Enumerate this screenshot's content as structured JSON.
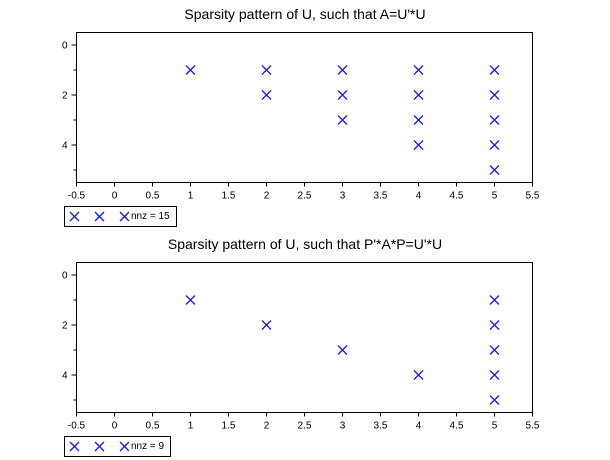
{
  "figure": {
    "background": "#ffffff",
    "axis_color": "#000000",
    "text_color": "#000000"
  },
  "chart_data": [
    {
      "type": "scatter",
      "title": "Sparsity pattern of U, such that A=U'*U",
      "marker": "x",
      "marker_color": "#2222dd",
      "grid": false,
      "xlim": [
        -0.5,
        5.5
      ],
      "ylim": [
        -0.5,
        5.5
      ],
      "y_axis_inverted": true,
      "x_ticks": [
        -0.5,
        0,
        0.5,
        1,
        1.5,
        2,
        2.5,
        3,
        3.5,
        4,
        4.5,
        5,
        5.5
      ],
      "y_major_ticks": [
        0,
        2,
        4
      ],
      "y_minor_ticks": [
        1,
        3,
        5
      ],
      "points": [
        [
          1,
          1
        ],
        [
          2,
          1
        ],
        [
          2,
          2
        ],
        [
          3,
          1
        ],
        [
          3,
          2
        ],
        [
          3,
          3
        ],
        [
          4,
          1
        ],
        [
          4,
          2
        ],
        [
          4,
          3
        ],
        [
          4,
          4
        ],
        [
          5,
          1
        ],
        [
          5,
          2
        ],
        [
          5,
          3
        ],
        [
          5,
          4
        ],
        [
          5,
          5
        ]
      ],
      "legend": {
        "label": "nnz = 15",
        "position": "below-left",
        "marker_samples": 3
      }
    },
    {
      "type": "scatter",
      "title": "Sparsity pattern of U, such that P'*A*P=U'*U",
      "marker": "x",
      "marker_color": "#2222dd",
      "grid": false,
      "xlim": [
        -0.5,
        5.5
      ],
      "ylim": [
        -0.5,
        5.5
      ],
      "y_axis_inverted": true,
      "x_ticks": [
        -0.5,
        0,
        0.5,
        1,
        1.5,
        2,
        2.5,
        3,
        3.5,
        4,
        4.5,
        5,
        5.5
      ],
      "y_major_ticks": [
        0,
        2,
        4
      ],
      "y_minor_ticks": [
        1,
        3,
        5
      ],
      "points": [
        [
          1,
          1
        ],
        [
          2,
          2
        ],
        [
          3,
          3
        ],
        [
          4,
          4
        ],
        [
          5,
          1
        ],
        [
          5,
          2
        ],
        [
          5,
          3
        ],
        [
          5,
          4
        ],
        [
          5,
          5
        ]
      ],
      "legend": {
        "label": "nnz = 9",
        "position": "below-left",
        "marker_samples": 3
      }
    }
  ]
}
